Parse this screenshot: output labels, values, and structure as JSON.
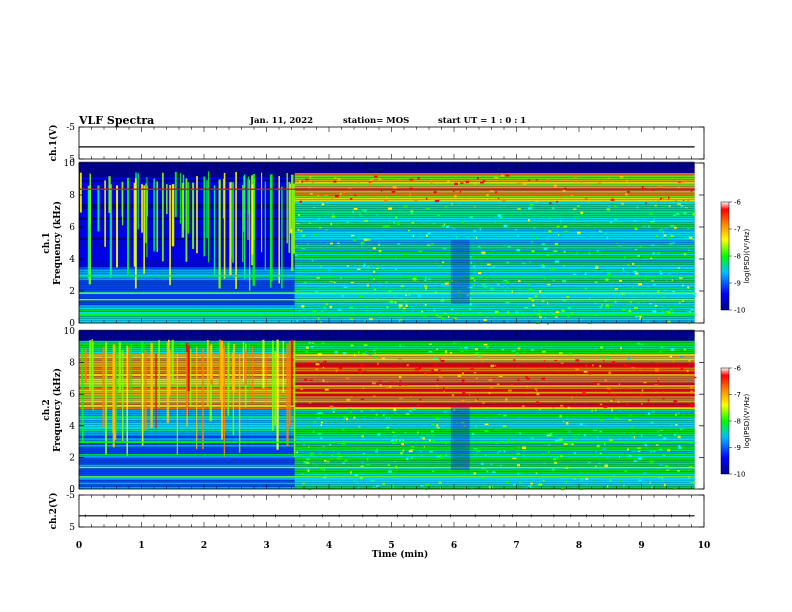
{
  "header": {
    "title": "VLF Spectra",
    "date": "Jan. 11, 2022",
    "station": "station= MOS",
    "start": "start  UT =   1 : 0  : 1"
  },
  "colors": {
    "background_spectrogram": "#000a7a",
    "scale": [
      "#00008b",
      "#0000ff",
      "#00bfff",
      "#00ff00",
      "#ffff00",
      "#ff8000",
      "#ff0000",
      "#ffffff"
    ]
  },
  "chart_data": [
    {
      "type": "line",
      "name": "ch1-waveform",
      "ylabel": "ch.1(V)",
      "yticks": [
        "5",
        "-5"
      ],
      "ylim": [
        -5,
        5
      ],
      "x": [
        0,
        9.85
      ],
      "values": [
        -1.2,
        -1.2
      ]
    },
    {
      "type": "heatmap",
      "name": "ch1-spectrogram",
      "ylabel": "ch.1\nFrequency (kHz)",
      "ylabel_line1": "ch.1",
      "ylabel_line2": "Frequency (kHz)",
      "yticks": [
        "0",
        "2",
        "4",
        "6",
        "8",
        "10"
      ],
      "ylim": [
        0,
        10
      ],
      "xlim": [
        0,
        9.85
      ],
      "transition_min": 3.45,
      "colorbar": {
        "label": "log(PSD)(V²/Hz)",
        "ticks": [
          "-6",
          "-7",
          "-8",
          "-9",
          "-10"
        ],
        "range": [
          -10,
          -6
        ]
      }
    },
    {
      "type": "heatmap",
      "name": "ch2-spectrogram",
      "ylabel_line1": "ch.2",
      "ylabel_line2": "Frequency (kHz)",
      "yticks": [
        "0",
        "2",
        "4",
        "6",
        "8",
        "10"
      ],
      "ylim": [
        0,
        10
      ],
      "xlim": [
        0,
        9.85
      ],
      "transition_min": 3.45,
      "colorbar": {
        "label": "log(PSD)(V²/Hz)",
        "ticks": [
          "-6",
          "-7",
          "-8",
          "-9",
          "-10"
        ],
        "range": [
          -10,
          -6
        ]
      }
    },
    {
      "type": "line",
      "name": "ch2-waveform",
      "ylabel": "ch.2(V)",
      "yticks": [
        "5",
        "-5"
      ],
      "ylim": [
        -5,
        5
      ],
      "x": [
        0,
        9.85
      ],
      "values": [
        -1.5,
        -1.5
      ]
    }
  ],
  "xaxis": {
    "label": "Time  (min)",
    "ticks": [
      "0",
      "1",
      "2",
      "3",
      "4",
      "5",
      "6",
      "7",
      "8",
      "9",
      "10"
    ],
    "range": [
      0,
      10
    ]
  }
}
